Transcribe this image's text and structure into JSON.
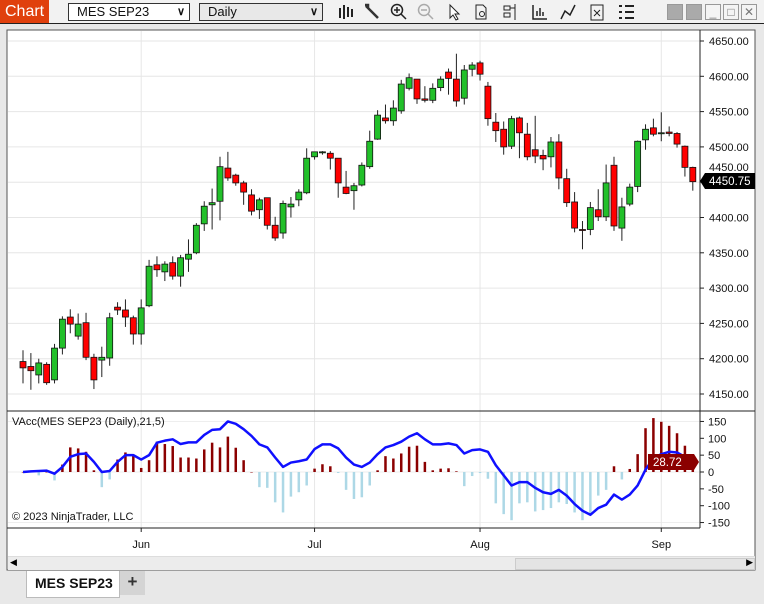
{
  "window": {
    "title": "Chart"
  },
  "toolbar": {
    "instrument": "MES SEP23",
    "interval": "Daily",
    "icons": [
      "bar-type-icon",
      "pencil-drawing-icon",
      "zoom-in-icon",
      "zoom-out-icon",
      "pointer-icon",
      "data-box-icon",
      "properties-icon",
      "indicators-icon",
      "strategies-icon",
      "chart-trader-icon",
      "list-icon"
    ]
  },
  "indicator": {
    "label": "VAcc(MES SEP23 (Daily),21,5)",
    "last_value": "28.72"
  },
  "copyright": "© 2023 NinjaTrader, LLC",
  "price_badge": "4450.75",
  "tabs": [
    {
      "label": "MES SEP23"
    }
  ],
  "add_tab": "+",
  "colors": {
    "up": "#22c02a",
    "down": "#ff0000",
    "line": "#1010ff",
    "hist_pos": "#8b0000",
    "hist_neg": "#add8e6",
    "title_bg": "#e0400d"
  },
  "chart_data": {
    "type": "candlestick",
    "price_axis": {
      "ticks": [
        "4150.00",
        "4200.00",
        "4250.00",
        "4300.00",
        "4350.00",
        "4400.00",
        "4450.00",
        "4500.00",
        "4550.00",
        "4600.00",
        "4650.00"
      ],
      "range": [
        4150,
        4650
      ]
    },
    "x_labels": [
      {
        "label": "Jun",
        "bar": 15
      },
      {
        "label": "Jul",
        "bar": 37
      },
      {
        "label": "Aug",
        "bar": 58
      },
      {
        "label": "Sep",
        "bar": 81
      }
    ],
    "ohlc": [
      [
        4196,
        4212,
        4165,
        4187
      ],
      [
        4189,
        4208,
        4156,
        4183
      ],
      [
        4177,
        4200,
        4165,
        4194
      ],
      [
        4192,
        4195,
        4163,
        4166
      ],
      [
        4170,
        4221,
        4165,
        4215
      ],
      [
        4215,
        4260,
        4206,
        4256
      ],
      [
        4259,
        4270,
        4236,
        4249
      ],
      [
        4232,
        4264,
        4227,
        4249
      ],
      [
        4251,
        4265,
        4198,
        4202
      ],
      [
        4202,
        4207,
        4157,
        4170
      ],
      [
        4198,
        4217,
        4174,
        4202
      ],
      [
        4201,
        4265,
        4190,
        4258
      ],
      [
        4273,
        4280,
        4262,
        4269
      ],
      [
        4269,
        4284,
        4245,
        4259
      ],
      [
        4258,
        4261,
        4220,
        4235
      ],
      [
        4235,
        4284,
        4220,
        4272
      ],
      [
        4275,
        4340,
        4273,
        4331
      ],
      [
        4333,
        4345,
        4316,
        4326
      ],
      [
        4323,
        4338,
        4310,
        4334
      ],
      [
        4336,
        4345,
        4312,
        4317
      ],
      [
        4317,
        4347,
        4302,
        4343
      ],
      [
        4341,
        4369,
        4323,
        4348
      ],
      [
        4350,
        4392,
        4348,
        4389
      ],
      [
        4391,
        4423,
        4381,
        4416
      ],
      [
        4418,
        4441,
        4383,
        4421
      ],
      [
        4423,
        4486,
        4396,
        4472
      ],
      [
        4470,
        4493,
        4452,
        4456
      ],
      [
        4460,
        4462,
        4445,
        4449
      ],
      [
        4449,
        4452,
        4418,
        4436
      ],
      [
        4432,
        4440,
        4403,
        4409
      ],
      [
        4411,
        4428,
        4398,
        4425
      ],
      [
        4428,
        4428,
        4383,
        4389
      ],
      [
        4389,
        4401,
        4367,
        4371
      ],
      [
        4378,
        4424,
        4370,
        4420
      ],
      [
        4415,
        4429,
        4400,
        4419
      ],
      [
        4425,
        4440,
        4416,
        4436
      ],
      [
        4435,
        4498,
        4433,
        4484
      ],
      [
        4486,
        4493,
        4482,
        4493
      ],
      [
        4492,
        4494,
        4489,
        4493
      ],
      [
        4491,
        4494,
        4468,
        4484
      ],
      [
        4484,
        4484,
        4428,
        4449
      ],
      [
        4443,
        4466,
        4433,
        4434
      ],
      [
        4438,
        4449,
        4411,
        4445
      ],
      [
        4446,
        4478,
        4444,
        4474
      ],
      [
        4472,
        4523,
        4469,
        4508
      ],
      [
        4511,
        4552,
        4510,
        4545
      ],
      [
        4541,
        4560,
        4533,
        4537
      ],
      [
        4537,
        4566,
        4530,
        4555
      ],
      [
        4551,
        4595,
        4547,
        4589
      ],
      [
        4583,
        4604,
        4580,
        4598
      ],
      [
        4596,
        4596,
        4561,
        4568
      ],
      [
        4568,
        4586,
        4563,
        4566
      ],
      [
        4566,
        4590,
        4562,
        4583
      ],
      [
        4584,
        4600,
        4579,
        4596
      ],
      [
        4606,
        4611,
        4574,
        4597
      ],
      [
        4596,
        4632,
        4557,
        4565
      ],
      [
        4569,
        4616,
        4560,
        4609
      ],
      [
        4610,
        4620,
        4600,
        4616
      ],
      [
        4619,
        4622,
        4594,
        4603
      ],
      [
        4586,
        4592,
        4530,
        4540
      ],
      [
        4535,
        4548,
        4507,
        4523
      ],
      [
        4525,
        4536,
        4489,
        4500
      ],
      [
        4501,
        4544,
        4497,
        4540
      ],
      [
        4541,
        4543,
        4484,
        4520
      ],
      [
        4518,
        4534,
        4481,
        4486
      ],
      [
        4496,
        4544,
        4477,
        4487
      ],
      [
        4488,
        4496,
        4467,
        4483
      ],
      [
        4486,
        4514,
        4471,
        4507
      ],
      [
        4507,
        4518,
        4440,
        4456
      ],
      [
        4455,
        4469,
        4415,
        4421
      ],
      [
        4422,
        4436,
        4379,
        4385
      ],
      [
        4383,
        4395,
        4355,
        4382
      ],
      [
        4383,
        4422,
        4375,
        4414
      ],
      [
        4411,
        4440,
        4395,
        4401
      ],
      [
        4401,
        4475,
        4395,
        4449
      ],
      [
        4474,
        4486,
        4381,
        4388
      ],
      [
        4385,
        4428,
        4367,
        4415
      ],
      [
        4419,
        4448,
        4416,
        4443
      ],
      [
        4444,
        4509,
        4436,
        4508
      ],
      [
        4510,
        4532,
        4496,
        4525
      ],
      [
        4527,
        4540,
        4515,
        4518
      ],
      [
        4519,
        4549,
        4508,
        4520
      ],
      [
        4521,
        4529,
        4515,
        4519
      ],
      [
        4519,
        4521,
        4499,
        4504
      ],
      [
        4501,
        4502,
        4458,
        4471
      ],
      [
        4471,
        4472,
        4438,
        4450.75
      ]
    ],
    "indicator_axis": {
      "ticks": [
        "150",
        "100",
        "50",
        "0",
        "-50",
        "-100",
        "-150"
      ],
      "range": [
        -160,
        170
      ]
    },
    "vacc_line": [
      0,
      2,
      3,
      4,
      -5,
      15,
      45,
      53,
      55,
      30,
      0,
      3,
      30,
      50,
      50,
      37,
      50,
      87,
      93,
      97,
      83,
      88,
      88,
      110,
      125,
      127,
      150,
      143,
      127,
      107,
      82,
      73,
      43,
      15,
      28,
      32,
      37,
      68,
      82,
      82,
      70,
      43,
      22,
      15,
      28,
      53,
      73,
      80,
      90,
      105,
      115,
      97,
      82,
      82,
      85,
      80,
      55,
      65,
      67,
      60,
      20,
      -10,
      -40,
      -30,
      -30,
      -47,
      -60,
      -65,
      -53,
      -70,
      -95,
      -115,
      -127,
      -107,
      -97,
      -67,
      -82,
      -67,
      -40,
      7,
      40,
      53,
      60,
      58,
      45,
      28.72
    ],
    "vacc_hist": [
      0,
      0,
      -10,
      0,
      -25,
      22,
      73,
      70,
      60,
      5,
      -45,
      -22,
      37,
      58,
      48,
      12,
      35,
      90,
      83,
      77,
      43,
      43,
      40,
      67,
      87,
      73,
      105,
      72,
      35,
      0,
      -45,
      -47,
      -90,
      -120,
      -73,
      -60,
      -40,
      10,
      23,
      17,
      -3,
      -53,
      -80,
      -75,
      -40,
      5,
      47,
      40,
      55,
      75,
      78,
      30,
      5,
      10,
      11,
      2,
      -42,
      -12,
      -3,
      -20,
      -93,
      -125,
      -143,
      -93,
      -90,
      -117,
      -113,
      -107,
      -90,
      -95,
      -120,
      -143,
      -125,
      -70,
      -53,
      17,
      -22,
      9,
      53,
      130,
      160,
      149,
      137,
      115,
      78,
      30
    ]
  }
}
